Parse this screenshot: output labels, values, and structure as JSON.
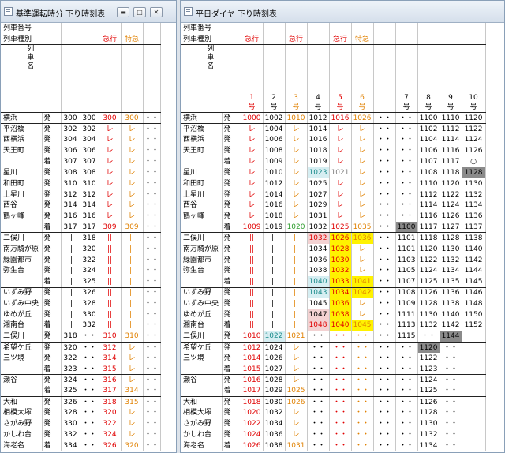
{
  "left_window": {
    "title": "基準運転時分 下り時刻表",
    "label_row1": "列車番号",
    "label_row2": "列車種別",
    "label_name": "列車名",
    "types": [
      "",
      "",
      "急行",
      "特急",
      "",
      ""
    ],
    "rows": [
      [
        "横浜",
        "発",
        "300",
        "300",
        "300",
        "300",
        "・・"
      ],
      [
        "平沼橋",
        "発",
        "302",
        "302",
        "レ",
        "レ",
        "・・"
      ],
      [
        "西横浜",
        "発",
        "304",
        "304",
        "レ",
        "レ",
        "・・"
      ],
      [
        "天王町",
        "発",
        "306",
        "306",
        "レ",
        "レ",
        "・・"
      ],
      [
        "",
        "着",
        "307",
        "307",
        "レ",
        "レ",
        "・・"
      ],
      [
        "星川",
        "発",
        "308",
        "308",
        "レ",
        "レ",
        "・・"
      ],
      [
        "和田町",
        "発",
        "310",
        "310",
        "レ",
        "レ",
        "・・"
      ],
      [
        "上星川",
        "発",
        "312",
        "312",
        "レ",
        "レ",
        "・・"
      ],
      [
        "西谷",
        "発",
        "314",
        "314",
        "レ",
        "レ",
        "・・"
      ],
      [
        "鶴ヶ峰",
        "発",
        "316",
        "316",
        "レ",
        "レ",
        "・・"
      ],
      [
        "",
        "着",
        "317",
        "317",
        "309",
        "309",
        "・・"
      ],
      [
        "二俣川",
        "発",
        "||",
        "318",
        "||",
        "||",
        "・・"
      ],
      [
        "南万騎が原",
        "発",
        "||",
        "320",
        "||",
        "||",
        "・・"
      ],
      [
        "緑園都市",
        "発",
        "||",
        "322",
        "||",
        "||",
        "・・"
      ],
      [
        "弥生台",
        "発",
        "||",
        "324",
        "||",
        "||",
        "・・"
      ],
      [
        "",
        "着",
        "||",
        "325",
        "||",
        "||",
        "・・"
      ],
      [
        "いずみ野",
        "発",
        "||",
        "326",
        "||",
        "||",
        "・・"
      ],
      [
        "いずみ中央",
        "発",
        "||",
        "328",
        "||",
        "||",
        "・・"
      ],
      [
        "ゆめが丘",
        "発",
        "||",
        "330",
        "||",
        "||",
        "・・"
      ],
      [
        "湘南台",
        "着",
        "||",
        "332",
        "||",
        "||",
        "・・"
      ],
      [
        "二俣川",
        "発",
        "318",
        "・・",
        "310",
        "310",
        "・・"
      ],
      [
        "希望ケ丘",
        "発",
        "320",
        "・・",
        "312",
        "レ",
        "・・"
      ],
      [
        "三ツ境",
        "発",
        "322",
        "・・",
        "314",
        "レ",
        "・・"
      ],
      [
        "",
        "着",
        "323",
        "・・",
        "315",
        "レ",
        "・・"
      ],
      [
        "瀬谷",
        "発",
        "324",
        "・・",
        "316",
        "レ",
        "・・"
      ],
      [
        "",
        "着",
        "325",
        "・・",
        "317",
        "314",
        "・・"
      ],
      [
        "大和",
        "発",
        "326",
        "・・",
        "318",
        "315",
        "・・"
      ],
      [
        "相模大塚",
        "発",
        "328",
        "・・",
        "320",
        "レ",
        "・・"
      ],
      [
        "さがみ野",
        "発",
        "330",
        "・・",
        "322",
        "レ",
        "・・"
      ],
      [
        "かしわ台",
        "発",
        "332",
        "・・",
        "324",
        "レ",
        "・・"
      ],
      [
        "海老名",
        "着",
        "334",
        "・・",
        "326",
        "320",
        "・・"
      ]
    ]
  },
  "right_window": {
    "title": "平日ダイヤ 下り時刻表",
    "label_row1": "列車番号",
    "label_row2": "列車種別",
    "label_name": "列車名",
    "types": [
      "急行",
      "",
      "急行",
      "",
      "急行",
      "特急",
      "",
      "",
      "",
      "",
      "",
      ""
    ],
    "col_nums": [
      "1",
      "2",
      "3",
      "4",
      "5",
      "6",
      "",
      "7",
      "8",
      "9",
      "10"
    ],
    "go": "号",
    "rows": [
      [
        "横浜",
        "発",
        "1000",
        "1002",
        "1010",
        "1012",
        "1016",
        "1026",
        "・・",
        "・・",
        "1100",
        "1110",
        "1120"
      ],
      [
        "平沼橋",
        "発",
        "レ",
        "1004",
        "レ",
        "1014",
        "レ",
        "レ",
        "・・",
        "・・",
        "1102",
        "1112",
        "1122"
      ],
      [
        "西横浜",
        "発",
        "レ",
        "1006",
        "レ",
        "1016",
        "レ",
        "レ",
        "・・",
        "・・",
        "1104",
        "1114",
        "1124"
      ],
      [
        "天王町",
        "発",
        "レ",
        "1008",
        "レ",
        "1018",
        "レ",
        "レ",
        "・・",
        "・・",
        "1106",
        "1116",
        "1126"
      ],
      [
        "",
        "着",
        "レ",
        "1009",
        "レ",
        "1019",
        "レ",
        "レ",
        "・・",
        "・・",
        "1107",
        "1117",
        "○"
      ],
      [
        "星川",
        "発",
        "レ",
        "1010",
        "レ",
        "1023",
        "1021",
        "レ",
        "・・",
        "・・",
        "1108",
        "1118",
        "1128"
      ],
      [
        "和田町",
        "発",
        "レ",
        "1012",
        "レ",
        "1025",
        "レ",
        "レ",
        "・・",
        "・・",
        "1110",
        "1120",
        "1130"
      ],
      [
        "上星川",
        "発",
        "レ",
        "1014",
        "レ",
        "1027",
        "レ",
        "レ",
        "・・",
        "・・",
        "1112",
        "1122",
        "1132"
      ],
      [
        "西谷",
        "発",
        "レ",
        "1016",
        "レ",
        "1029",
        "レ",
        "レ",
        "・・",
        "・・",
        "1114",
        "1124",
        "1134"
      ],
      [
        "鶴ヶ峰",
        "発",
        "レ",
        "1018",
        "レ",
        "1031",
        "レ",
        "レ",
        "・・",
        "・・",
        "1116",
        "1126",
        "1136"
      ],
      [
        "",
        "着",
        "1009",
        "1019",
        "1020",
        "1032",
        "1025",
        "1035",
        "・・",
        "1100",
        "1117",
        "1127",
        "1137"
      ],
      [
        "二俣川",
        "発",
        "||",
        "||",
        "||",
        "1032",
        "1026",
        "1036",
        "・・",
        "1101",
        "1118",
        "1128",
        "1138"
      ],
      [
        "南万騎が原",
        "発",
        "||",
        "||",
        "||",
        "1034",
        "1028",
        "レ",
        "・・",
        "1101",
        "1120",
        "1130",
        "1140"
      ],
      [
        "緑園都市",
        "発",
        "||",
        "||",
        "||",
        "1036",
        "1030",
        "レ",
        "・・",
        "1103",
        "1122",
        "1132",
        "1142"
      ],
      [
        "弥生台",
        "発",
        "||",
        "||",
        "||",
        "1038",
        "1032",
        "レ",
        "・・",
        "1105",
        "1124",
        "1134",
        "1144"
      ],
      [
        "",
        "着",
        "||",
        "||",
        "||",
        "1040",
        "1033",
        "1041",
        "・・",
        "1107",
        "1125",
        "1135",
        "1145"
      ],
      [
        "いずみ野",
        "発",
        "||",
        "||",
        "||",
        "1043",
        "1034",
        "1042",
        "・・",
        "1108",
        "1126",
        "1136",
        "1146"
      ],
      [
        "いずみ中央",
        "発",
        "||",
        "||",
        "||",
        "1045",
        "1036",
        "レ",
        "・・",
        "1109",
        "1128",
        "1138",
        "1148"
      ],
      [
        "ゆめが丘",
        "発",
        "||",
        "||",
        "||",
        "1047",
        "1038",
        "レ",
        "・・",
        "1111",
        "1130",
        "1140",
        "1150"
      ],
      [
        "湘南台",
        "着",
        "||",
        "||",
        "||",
        "1048",
        "1040",
        "1045",
        "・・",
        "1113",
        "1132",
        "1142",
        "1152"
      ],
      [
        "二俣川",
        "発",
        "1010",
        "1022",
        "1021",
        "・・",
        "・・",
        "・・",
        "・・",
        "1115",
        "・・",
        "1144",
        ""
      ],
      [
        "希望ケ丘",
        "発",
        "1012",
        "1024",
        "レ",
        "・・",
        "・・",
        "・・",
        "・・",
        "・・",
        "1120",
        "・・",
        ""
      ],
      [
        "三ツ境",
        "発",
        "1014",
        "1026",
        "レ",
        "・・",
        "・・",
        "・・",
        "・・",
        "・・",
        "1122",
        "・・",
        ""
      ],
      [
        "",
        "着",
        "1015",
        "1027",
        "レ",
        "・・",
        "・・",
        "・・",
        "・・",
        "・・",
        "1123",
        "・・",
        ""
      ],
      [
        "瀬谷",
        "発",
        "1016",
        "1028",
        "レ",
        "・・",
        "・・",
        "・・",
        "・・",
        "・・",
        "1124",
        "・・",
        ""
      ],
      [
        "",
        "着",
        "1017",
        "1029",
        "1025",
        "・・",
        "・・",
        "・・",
        "・・",
        "・・",
        "1125",
        "・・",
        ""
      ],
      [
        "大和",
        "発",
        "1018",
        "1030",
        "1026",
        "・・",
        "・・",
        "・・",
        "・・",
        "・・",
        "1126",
        "・・",
        ""
      ],
      [
        "相模大塚",
        "発",
        "1020",
        "1032",
        "レ",
        "・・",
        "・・",
        "・・",
        "・・",
        "・・",
        "1128",
        "・・",
        ""
      ],
      [
        "さがみ野",
        "発",
        "1022",
        "1034",
        "レ",
        "・・",
        "・・",
        "・・",
        "・・",
        "・・",
        "1130",
        "・・",
        ""
      ],
      [
        "かしわ台",
        "発",
        "1024",
        "1036",
        "レ",
        "・・",
        "・・",
        "・・",
        "・・",
        "・・",
        "1132",
        "・・",
        ""
      ],
      [
        "海老名",
        "着",
        "1026",
        "1038",
        "1031",
        "・・",
        "・・",
        "・・",
        "・・",
        "・・",
        "1134",
        "・・",
        ""
      ]
    ]
  }
}
